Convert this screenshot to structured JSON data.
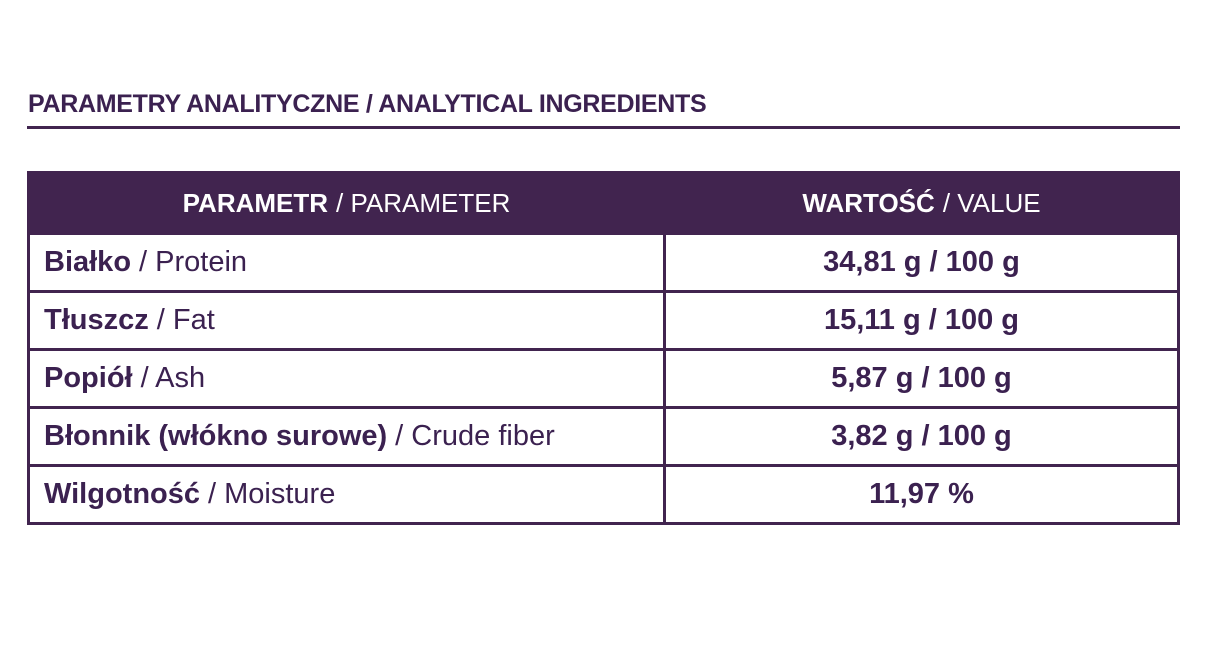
{
  "title": "PARAMETRY ANALITYCZNE / ANALYTICAL INGREDIENTS",
  "table": {
    "header": [
      [
        "PARAMETR",
        "/ PARAMETER"
      ],
      [
        "WARTOŚĆ",
        "/ VALUE"
      ]
    ],
    "rows": [
      [
        "Białko",
        "/ Protein",
        "34,81 g / 100 g"
      ],
      [
        "Tłuszcz",
        "/ Fat",
        "15,11 g / 100 g"
      ],
      [
        "Popiół",
        "/ Ash",
        "5,87 g / 100 g"
      ],
      [
        "Błonnik (włókno surowe)",
        "/ Crude fiber",
        "3,82 g / 100 g"
      ],
      [
        "Wilgotność",
        "/ Moisture",
        "11,97 %"
      ]
    ]
  }
}
